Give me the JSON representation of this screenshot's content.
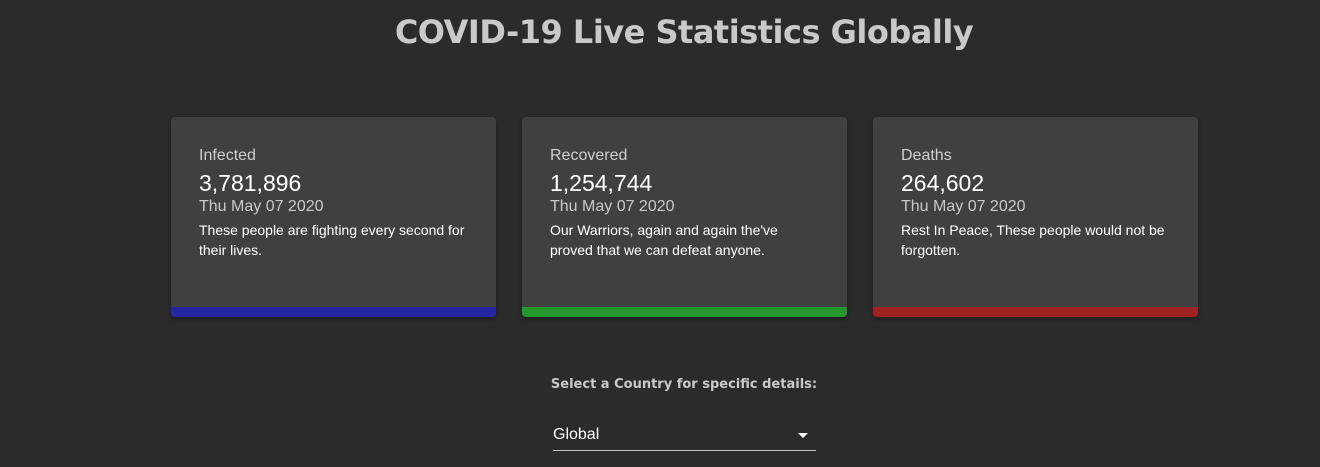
{
  "page": {
    "title": "COVID-19 Live Statistics Globally"
  },
  "cards": [
    {
      "label": "Infected",
      "count": "3,781,896",
      "date": "Thu May 07 2020",
      "description": "These people are fighting every second for their lives.",
      "accent_color": "#2626a3"
    },
    {
      "label": "Recovered",
      "count": "1,254,744",
      "date": "Thu May 07 2020",
      "description": "Our Warriors, again and again the've proved that we can defeat anyone.",
      "accent_color": "#23972b"
    },
    {
      "label": "Deaths",
      "count": "264,602",
      "date": "Thu May 07 2020",
      "description": "Rest In Peace, These people would not be forgotten.",
      "accent_color": "#9e2222"
    }
  ],
  "country_select": {
    "label": "Select a Country for specific details:",
    "selected_value": "Global",
    "icon": "dropdown-arrow-icon"
  }
}
